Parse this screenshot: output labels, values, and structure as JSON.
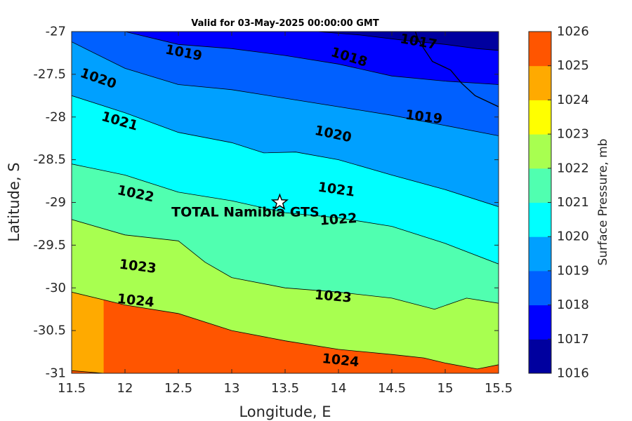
{
  "chart_data": {
    "type": "filled-contour",
    "title": "Valid for 03-May-2025 00:00:00 GMT",
    "xlabel": "Longitude, E",
    "ylabel": "Latitude, S",
    "colorbar_label": "Surface Pressure, mb",
    "xlim": [
      11.5,
      15.5
    ],
    "ylim": [
      -31,
      -27
    ],
    "x_ticks": [
      11.5,
      12,
      12.5,
      13,
      13.5,
      14,
      14.5,
      15,
      15.5
    ],
    "x_tick_labels": [
      "11.5",
      "12",
      "12.5",
      "13",
      "13.5",
      "14",
      "14.5",
      "15",
      "15.5"
    ],
    "y_ticks": [
      -27,
      -27.5,
      -28,
      -28.5,
      -29,
      -29.5,
      -30,
      -30.5,
      -31
    ],
    "y_tick_labels": [
      "-27",
      "-27.5",
      "-28",
      "-28.5",
      "-29",
      "-29.5",
      "-30",
      "-30.5",
      "-31"
    ],
    "colorbar": {
      "levels": [
        1016,
        1017,
        1018,
        1019,
        1020,
        1021,
        1022,
        1023,
        1024,
        1025,
        1026
      ],
      "tick_labels": [
        "1026",
        "1025",
        "1024",
        "1023",
        "1022",
        "1021",
        "1020",
        "1019",
        "1018",
        "1017",
        "1016"
      ],
      "colors": [
        "#00009f",
        "#0000ff",
        "#0060ff",
        "#00a0ff",
        "#00ffff",
        "#50ffb0",
        "#a8ff50",
        "#ffff00",
        "#ffaa00",
        "#ff5500",
        "#ff0000"
      ]
    },
    "contours": [
      {
        "level": 1017,
        "label": "1017",
        "points": [
          [
            13.8,
            -27
          ],
          [
            14.2,
            -27.04
          ],
          [
            14.6,
            -27.1
          ],
          [
            15.0,
            -27.15
          ],
          [
            15.3,
            -27.2
          ],
          [
            15.5,
            -27.22
          ]
        ]
      },
      {
        "level": 1018,
        "label": "1018",
        "points": [
          [
            12.0,
            -27
          ],
          [
            12.5,
            -27.15
          ],
          [
            13.0,
            -27.2
          ],
          [
            13.5,
            -27.28
          ],
          [
            14.0,
            -27.38
          ],
          [
            14.5,
            -27.52
          ],
          [
            15.0,
            -27.58
          ],
          [
            15.5,
            -27.62
          ]
        ]
      },
      {
        "level": 1019,
        "label": "1019",
        "points": [
          [
            11.5,
            -27.12
          ],
          [
            12.0,
            -27.43
          ],
          [
            12.5,
            -27.62
          ],
          [
            13.0,
            -27.68
          ],
          [
            13.5,
            -27.78
          ],
          [
            14.0,
            -27.88
          ],
          [
            14.5,
            -27.98
          ],
          [
            15.0,
            -28.1
          ],
          [
            15.5,
            -28.22
          ]
        ]
      },
      {
        "level": 1020,
        "label": "1020",
        "points": [
          [
            11.5,
            -27.75
          ],
          [
            12.0,
            -27.95
          ],
          [
            12.5,
            -28.18
          ],
          [
            13.0,
            -28.3
          ],
          [
            13.3,
            -28.42
          ],
          [
            13.6,
            -28.41
          ],
          [
            14.0,
            -28.5
          ],
          [
            14.5,
            -28.68
          ],
          [
            15.0,
            -28.85
          ],
          [
            15.5,
            -29.05
          ]
        ]
      },
      {
        "level": 1021,
        "label": "1021",
        "points": [
          [
            11.5,
            -28.55
          ],
          [
            12.0,
            -28.68
          ],
          [
            12.5,
            -28.88
          ],
          [
            13.0,
            -28.98
          ],
          [
            13.5,
            -29.12
          ],
          [
            14.0,
            -29.18
          ],
          [
            14.5,
            -29.28
          ],
          [
            15.0,
            -29.48
          ],
          [
            15.5,
            -29.72
          ]
        ]
      },
      {
        "level": 1022,
        "label": "1022",
        "points": [
          [
            11.5,
            -29.2
          ],
          [
            12.0,
            -29.38
          ],
          [
            12.5,
            -29.45
          ],
          [
            12.75,
            -29.7
          ],
          [
            13.0,
            -29.88
          ],
          [
            13.5,
            -30.0
          ],
          [
            14.0,
            -30.05
          ],
          [
            14.5,
            -30.12
          ],
          [
            14.9,
            -30.25
          ],
          [
            15.2,
            -30.12
          ],
          [
            15.5,
            -30.18
          ]
        ]
      },
      {
        "level": 1023,
        "label": "1023",
        "points": [
          [
            11.5,
            -30.05
          ],
          [
            12.0,
            -30.2
          ],
          [
            12.5,
            -30.3
          ],
          [
            13.0,
            -30.5
          ],
          [
            13.5,
            -30.62
          ],
          [
            14.0,
            -30.72
          ],
          [
            14.5,
            -30.78
          ],
          [
            14.8,
            -30.82
          ],
          [
            15.0,
            -30.88
          ],
          [
            15.3,
            -30.95
          ],
          [
            15.5,
            -30.9
          ]
        ]
      },
      {
        "level": 1025,
        "label": "",
        "points": [
          [
            11.5,
            -30.97
          ],
          [
            11.8,
            -31.0
          ]
        ]
      }
    ],
    "contour_labels": [
      {
        "text": "1017",
        "lon": 14.75,
        "lat": -27.12,
        "angle": 10
      },
      {
        "text": "1018",
        "lon": 14.1,
        "lat": -27.3,
        "angle": 17
      },
      {
        "text": "1019",
        "lon": 12.55,
        "lat": -27.25,
        "angle": 11
      },
      {
        "text": "1019",
        "lon": 14.8,
        "lat": -28.0,
        "angle": 7
      },
      {
        "text": "1020",
        "lon": 11.75,
        "lat": -27.55,
        "angle": 19
      },
      {
        "text": "1020",
        "lon": 13.95,
        "lat": -28.2,
        "angle": 12
      },
      {
        "text": "1021",
        "lon": 11.95,
        "lat": -28.05,
        "angle": 16
      },
      {
        "text": "1021",
        "lon": 13.98,
        "lat": -28.85,
        "angle": 8
      },
      {
        "text": "1022",
        "lon": 12.1,
        "lat": -28.9,
        "angle": 12
      },
      {
        "text": "1022",
        "lon": 14.0,
        "lat": -29.2,
        "angle": -4
      },
      {
        "text": "1023",
        "lon": 12.12,
        "lat": -29.75,
        "angle": 7
      },
      {
        "text": "1023",
        "lon": 13.95,
        "lat": -30.1,
        "angle": 5
      },
      {
        "text": "1024",
        "lon": 12.1,
        "lat": -30.15,
        "angle": 6
      },
      {
        "text": "1024",
        "lon": 14.02,
        "lat": -30.85,
        "angle": 6
      }
    ],
    "site": {
      "name": "TOTAL Namibia GTS",
      "lon": 13.45,
      "lat": -29.0
    },
    "coastline": [
      [
        14.72,
        -27
      ],
      [
        14.75,
        -27.1
      ],
      [
        14.8,
        -27.2
      ],
      [
        14.88,
        -27.35
      ],
      [
        15.05,
        -27.45
      ],
      [
        15.15,
        -27.6
      ],
      [
        15.28,
        -27.75
      ],
      [
        15.5,
        -27.88
      ]
    ]
  }
}
